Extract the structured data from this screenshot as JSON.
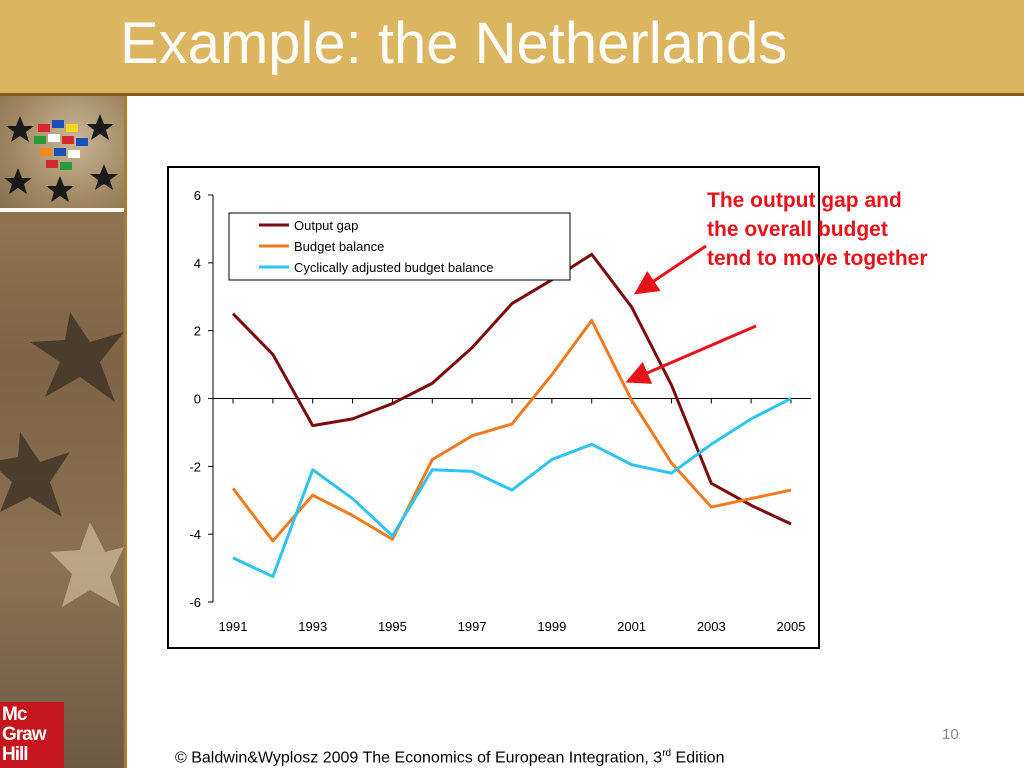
{
  "slide": {
    "title": "Example: the Netherlands",
    "annotation_lines": [
      "The output gap and",
      "the overall budget",
      "tend to move together"
    ],
    "page_number": "10",
    "footer_pre": "© Baldwin&Wyplosz 2009 The Economics of European Integration, 3",
    "footer_sup": "rd",
    "footer_post": " Edition",
    "logo_lines": [
      "Mc",
      "Graw",
      "Hill"
    ],
    "colors": {
      "title_bar": "#dcb560",
      "annotation": "#e8121b",
      "logo": "#c4161c"
    }
  },
  "chart_data": {
    "type": "line",
    "x": [
      1991,
      1992,
      1993,
      1994,
      1995,
      1996,
      1997,
      1998,
      1999,
      2000,
      2001,
      2002,
      2003,
      2004,
      2005
    ],
    "x_tick_labels": [
      "1991",
      "1993",
      "1995",
      "1997",
      "1999",
      "2001",
      "2003",
      "2005"
    ],
    "y_ticks": [
      6,
      4,
      2,
      0,
      -2,
      -4,
      -6
    ],
    "y_tick_labels": [
      "6",
      "4",
      "2",
      "0",
      "-2",
      "-4",
      "-6"
    ],
    "ylim": [
      -6,
      6
    ],
    "grid": false,
    "legend_position": "top-left",
    "series": [
      {
        "name": "Output gap",
        "color": "#7b0c0c",
        "values": [
          2.5,
          1.3,
          -0.8,
          -0.6,
          -0.15,
          0.45,
          1.5,
          2.8,
          3.5,
          4.25,
          2.7,
          0.4,
          -2.5,
          -3.15,
          -3.7
        ]
      },
      {
        "name": "Budget balance",
        "color": "#f07a20",
        "values": [
          -2.65,
          -4.2,
          -2.85,
          -3.45,
          -4.15,
          -1.8,
          -1.1,
          -0.75,
          0.7,
          2.3,
          -0.05,
          -1.9,
          -3.2,
          -2.95,
          -2.7
        ]
      },
      {
        "name": "Cyclically adjusted budget balance",
        "color": "#2ec4ef",
        "values": [
          -4.7,
          -5.25,
          -2.1,
          -2.95,
          -4.05,
          -2.1,
          -2.15,
          -2.7,
          -1.8,
          -1.35,
          -1.95,
          -2.2,
          -1.35,
          -0.6,
          0.0
        ]
      }
    ]
  }
}
